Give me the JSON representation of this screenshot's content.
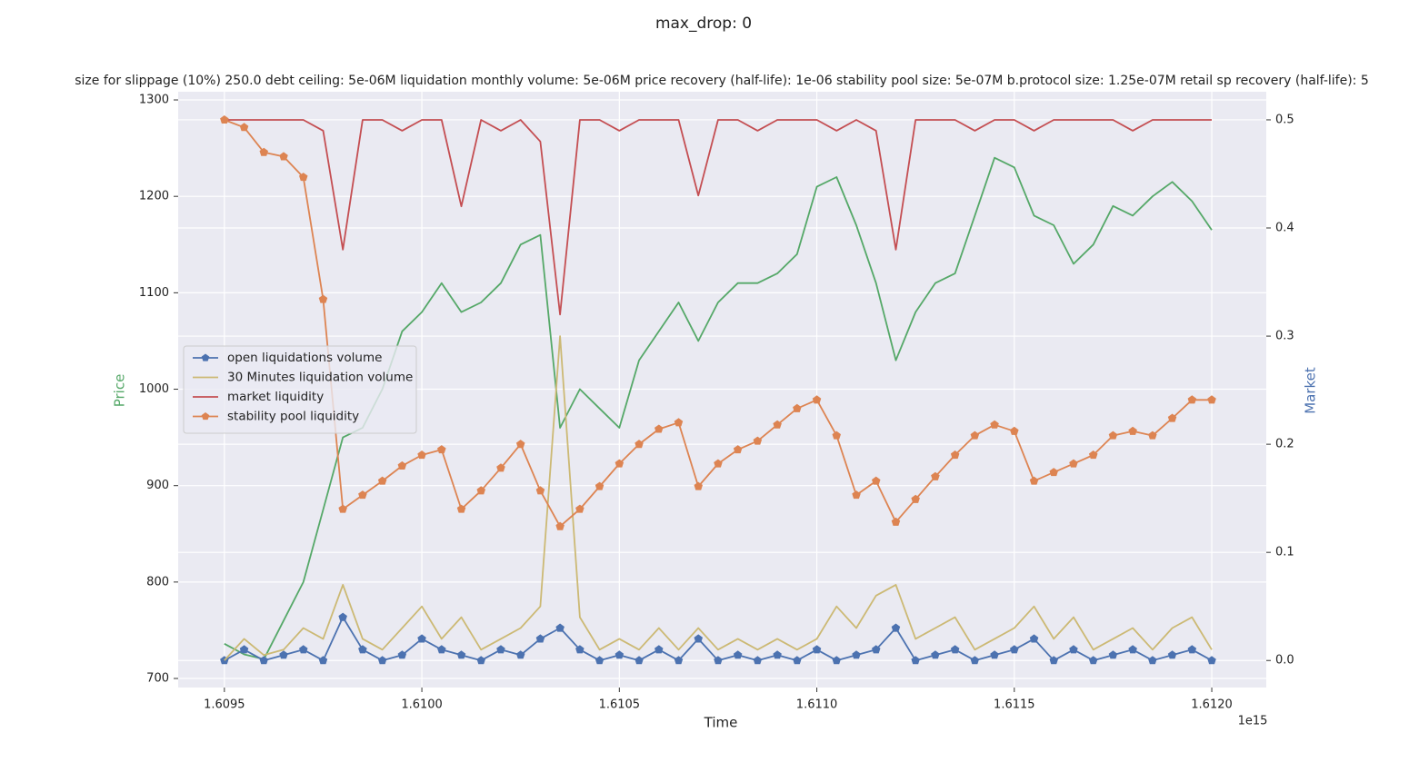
{
  "chart_data": {
    "type": "line",
    "title": "max_drop: 0",
    "subtitle": "size for slippage (10%) 250.0 debt ceiling: 5e-06M liquidation monthly volume: 5e-06M price recovery (half-life): 1e-06 stability pool size: 5e-07M b.protocol size: 1.25e-07M retail sp recovery (half-life): 5",
    "x_label": "Time",
    "x_offset_label": "1e15",
    "y_label": "Price",
    "y2_label": "Market",
    "xlim": [
      1.609383,
      1.612138
    ],
    "xticks": [
      1.6095,
      {
        "value": 1.61,
        "label": "1.6100"
      },
      1.6105,
      {
        "value": 1.611,
        "label": "1.6110"
      },
      1.6115,
      {
        "value": 1.612,
        "label": "1.6120"
      }
    ],
    "ylim": [
      690.6,
      1308.5
    ],
    "yticks": [
      700,
      800,
      900,
      1000,
      1100,
      1200,
      1300
    ],
    "y2lim": [
      -0.025,
      0.526
    ],
    "y2ticks": [
      {
        "value": 0,
        "label": "0.0"
      },
      0.1,
      0.2,
      0.3,
      0.4,
      0.5
    ],
    "grid": true,
    "legend": "center left",
    "x": [
      1.6095,
      1.60955,
      1.6096,
      1.60965,
      1.6097,
      1.60975,
      1.6098,
      1.60985,
      1.6099,
      1.60995,
      1.61,
      1.61005,
      1.6101,
      1.61015,
      1.6102,
      1.61025,
      1.6103,
      1.61035,
      1.6104,
      1.61045,
      1.6105,
      1.61055,
      1.6106,
      1.61065,
      1.6107,
      1.61075,
      1.6108,
      1.61085,
      1.6109,
      1.61095,
      1.611,
      1.61105,
      1.6111,
      1.61115,
      1.6112,
      1.61125,
      1.6113,
      1.61135,
      1.6114,
      1.61145,
      1.6115,
      1.61155,
      1.6116,
      1.61165,
      1.6117,
      1.61175,
      1.6118,
      1.61185,
      1.6119,
      1.61195,
      1.612
    ],
    "series": [
      {
        "color": "#55a868",
        "axis": "y",
        "marker": false,
        "values": [
          736,
          725,
          720,
          760,
          800,
          875,
          950,
          960,
          1000,
          1060,
          1080,
          1110,
          1080,
          1090,
          1110,
          1150,
          1160,
          960,
          1000,
          980,
          960,
          1030,
          1060,
          1090,
          1050,
          1090,
          1110,
          1110,
          1120,
          1140,
          1210,
          1220,
          1170,
          1110,
          1030,
          1080,
          1110,
          1120,
          1180,
          1240,
          1230,
          1180,
          1170,
          1130,
          1150,
          1190,
          1180,
          1200,
          1215,
          1195,
          1165
        ]
      },
      {
        "name": "open liquidations volume",
        "color": "#4c72b0",
        "axis": "y2",
        "marker": true,
        "values": [
          0,
          0.01,
          0,
          0.005,
          0.01,
          0,
          0.04,
          0.01,
          0,
          0.005,
          0.02,
          0.01,
          0.005,
          0,
          0.01,
          0.005,
          0.02,
          0.03,
          0.01,
          0,
          0.005,
          0,
          0.01,
          0,
          0.02,
          0,
          0.005,
          0,
          0.005,
          0,
          0.01,
          0,
          0.005,
          0.01,
          0.03,
          0,
          0.005,
          0.01,
          0,
          0.005,
          0.01,
          0.02,
          0,
          0.01,
          0,
          0.005,
          0.01,
          0,
          0.005,
          0.01,
          0
        ]
      },
      {
        "name": "30 Minutes liquidation volume",
        "color": "#ccb974",
        "axis": "y2",
        "marker": false,
        "values": [
          0,
          0.02,
          0.005,
          0.01,
          0.03,
          0.02,
          0.07,
          0.02,
          0.01,
          0.03,
          0.05,
          0.02,
          0.04,
          0.01,
          0.02,
          0.03,
          0.05,
          0.3,
          0.04,
          0.01,
          0.02,
          0.01,
          0.03,
          0.01,
          0.03,
          0.01,
          0.02,
          0.01,
          0.02,
          0.01,
          0.02,
          0.05,
          0.03,
          0.06,
          0.07,
          0.02,
          0.03,
          0.04,
          0.01,
          0.02,
          0.03,
          0.05,
          0.02,
          0.04,
          0.01,
          0.02,
          0.03,
          0.01,
          0.03,
          0.04,
          0.01
        ]
      },
      {
        "name": "market liquidity",
        "color": "#c44e52",
        "axis": "y2",
        "marker": false,
        "values": [
          0.5,
          0.5,
          0.5,
          0.5,
          0.5,
          0.49,
          0.38,
          0.5,
          0.5,
          0.49,
          0.5,
          0.5,
          0.42,
          0.5,
          0.49,
          0.5,
          0.48,
          0.32,
          0.5,
          0.5,
          0.49,
          0.5,
          0.5,
          0.5,
          0.43,
          0.5,
          0.5,
          0.49,
          0.5,
          0.5,
          0.5,
          0.49,
          0.5,
          0.49,
          0.38,
          0.5,
          0.5,
          0.5,
          0.49,
          0.5,
          0.5,
          0.49,
          0.5,
          0.5,
          0.5,
          0.5,
          0.49,
          0.5,
          0.5,
          0.5,
          0.5
        ]
      },
      {
        "name": "stability pool liquidity",
        "color": "#dd8452",
        "axis": "y2",
        "marker": true,
        "values": [
          0.5,
          0.493,
          0.47,
          0.466,
          0.447,
          0.334,
          0.14,
          0.153,
          0.166,
          0.18,
          0.19,
          0.195,
          0.14,
          0.157,
          0.178,
          0.2,
          0.157,
          0.124,
          0.14,
          0.161,
          0.182,
          0.2,
          0.214,
          0.22,
          0.161,
          0.182,
          0.195,
          0.203,
          0.218,
          0.233,
          0.241,
          0.208,
          0.153,
          0.166,
          0.128,
          0.149,
          0.17,
          0.19,
          0.208,
          0.218,
          0.212,
          0.166,
          0.174,
          0.182,
          0.19,
          0.208,
          0.212,
          0.208,
          0.224,
          0.241,
          0.241
        ]
      }
    ]
  }
}
